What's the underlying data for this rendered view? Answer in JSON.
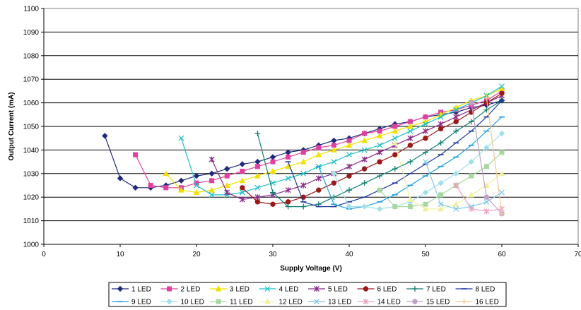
{
  "chart_data": {
    "type": "line",
    "title": "",
    "xlabel": "Supply Voltage (V)",
    "ylabel": "Output Current (mA)",
    "xlim": [
      0,
      70
    ],
    "ylim": [
      1000,
      1100
    ],
    "xticks": [
      0,
      10,
      20,
      30,
      40,
      50,
      60,
      70
    ],
    "yticks": [
      1000,
      1010,
      1020,
      1030,
      1040,
      1050,
      1060,
      1070,
      1080,
      1090,
      1100
    ],
    "grid": "horizontal",
    "legend_position": "bottom",
    "series": [
      {
        "name": "1 LED",
        "color": "#1f2a7a",
        "marker": "diamond",
        "x": [
          8,
          10,
          12,
          14,
          16,
          18,
          20,
          22,
          24,
          26,
          28,
          30,
          32,
          34,
          36,
          38,
          40,
          42,
          44,
          46,
          48,
          50,
          52,
          54,
          56,
          58,
          60
        ],
        "y": [
          1046,
          1028,
          1024,
          1024,
          1025,
          1027,
          1029,
          1030,
          1032,
          1034,
          1035,
          1037,
          1039,
          1040,
          1042,
          1044,
          1045,
          1047,
          1049,
          1051,
          1052,
          1054,
          1055,
          1056,
          1058,
          1059,
          1061
        ]
      },
      {
        "name": "2 LED",
        "color": "#e040a0",
        "marker": "square",
        "x": [
          12,
          14,
          16,
          18,
          20,
          22,
          24,
          26,
          28,
          30,
          32,
          34,
          36,
          38,
          40,
          42,
          44,
          46,
          48,
          50,
          52,
          54,
          56,
          58,
          60
        ],
        "y": [
          1038,
          1025,
          1024,
          1024,
          1026,
          1027,
          1029,
          1031,
          1033,
          1035,
          1037,
          1039,
          1041,
          1042,
          1044,
          1047,
          1048,
          1050,
          1052,
          1054,
          1056,
          1057,
          1059,
          1061,
          1065
        ]
      },
      {
        "name": "3 LED",
        "color": "#f0e000",
        "marker": "triangle",
        "x": [
          16,
          18,
          20,
          22,
          24,
          26,
          28,
          30,
          32,
          34,
          36,
          38,
          40,
          42,
          44,
          46,
          48,
          50,
          52,
          54,
          56,
          58,
          60
        ],
        "y": [
          1030,
          1023,
          1022,
          1023,
          1025,
          1027,
          1029,
          1031,
          1033,
          1035,
          1038,
          1040,
          1042,
          1044,
          1046,
          1048,
          1050,
          1052,
          1055,
          1058,
          1061,
          1063,
          1066
        ]
      },
      {
        "name": "4 LED",
        "color": "#20c0c8",
        "marker": "x",
        "x": [
          18,
          20,
          22,
          24,
          26,
          28,
          30,
          32,
          34,
          36,
          38,
          40,
          42,
          44,
          46,
          48,
          50,
          52,
          54,
          56,
          58,
          60
        ],
        "y": [
          1045,
          1025,
          1021,
          1021,
          1022,
          1024,
          1026,
          1028,
          1030,
          1033,
          1035,
          1038,
          1040,
          1042,
          1045,
          1048,
          1051,
          1054,
          1057,
          1060,
          1063,
          1067
        ]
      },
      {
        "name": "5 LED",
        "color": "#8a2a8a",
        "marker": "star",
        "x": [
          22,
          24,
          26,
          28,
          30,
          32,
          34,
          36,
          38,
          40,
          42,
          44,
          46,
          48,
          50,
          52,
          54,
          56,
          58,
          60
        ],
        "y": [
          1036,
          1022,
          1019,
          1020,
          1021,
          1023,
          1025,
          1028,
          1030,
          1033,
          1036,
          1039,
          1042,
          1045,
          1048,
          1051,
          1054,
          1057,
          1060,
          1063
        ]
      },
      {
        "name": "6 LED",
        "color": "#9a1a1a",
        "marker": "circle",
        "x": [
          26,
          28,
          30,
          32,
          34,
          36,
          38,
          40,
          42,
          44,
          46,
          48,
          50,
          52,
          54,
          56,
          58,
          60
        ],
        "y": [
          1024,
          1018,
          1017,
          1018,
          1020,
          1023,
          1026,
          1029,
          1032,
          1035,
          1038,
          1042,
          1045,
          1049,
          1052,
          1056,
          1060,
          1064
        ]
      },
      {
        "name": "7 LED",
        "color": "#108070",
        "marker": "plus",
        "x": [
          28,
          30,
          32,
          34,
          36,
          38,
          40,
          42,
          44,
          46,
          48,
          50,
          52,
          54,
          56,
          58,
          60
        ],
        "y": [
          1047,
          1022,
          1016,
          1016,
          1017,
          1020,
          1023,
          1026,
          1029,
          1032,
          1035,
          1039,
          1043,
          1048,
          1052,
          1057,
          1061
        ]
      },
      {
        "name": "8 LED",
        "color": "#1f3aa0",
        "marker": "dash",
        "x": [
          32,
          34,
          36,
          38,
          40,
          42,
          44,
          46,
          48,
          50,
          52,
          54,
          56,
          58,
          60
        ],
        "y": [
          1035,
          1018,
          1016,
          1016,
          1018,
          1020,
          1023,
          1026,
          1030,
          1034,
          1038,
          1043,
          1048,
          1054,
          1061
        ]
      },
      {
        "name": "9 LED",
        "color": "#20a0e0",
        "marker": "dash",
        "x": [
          36,
          38,
          40,
          42,
          44,
          46,
          48,
          50,
          52,
          54,
          56,
          58,
          60
        ],
        "y": [
          1033,
          1017,
          1015,
          1016,
          1018,
          1021,
          1025,
          1029,
          1033,
          1037,
          1042,
          1048,
          1054
        ]
      },
      {
        "name": "10 LED",
        "color": "#a0e0e8",
        "marker": "diamond",
        "x": [
          38,
          40,
          42,
          44,
          46,
          48,
          50,
          52,
          54,
          56,
          58,
          60
        ],
        "y": [
          1030,
          1016,
          1016,
          1015,
          1016,
          1018,
          1022,
          1026,
          1030,
          1035,
          1041,
          1047
        ]
      },
      {
        "name": "11 LED",
        "color": "#a8d8a0",
        "marker": "square",
        "x": [
          44,
          46,
          48,
          50,
          52,
          54,
          56,
          58,
          60
        ],
        "y": [
          1023,
          1016,
          1016,
          1017,
          1021,
          1025,
          1029,
          1033,
          1039
        ]
      },
      {
        "name": "12 LED",
        "color": "#f0f0a0",
        "marker": "triangle",
        "x": [
          46,
          48,
          50,
          52,
          54,
          56,
          58,
          60
        ],
        "y": [
          1043,
          1019,
          1015,
          1015,
          1017,
          1021,
          1025,
          1030
        ]
      },
      {
        "name": "13 LED",
        "color": "#80c8e8",
        "marker": "x",
        "x": [
          50,
          52,
          54,
          56,
          58,
          60
        ],
        "y": [
          1035,
          1017,
          1015,
          1016,
          1018,
          1022
        ]
      },
      {
        "name": "14 LED",
        "color": "#f0a0c0",
        "marker": "star",
        "x": [
          54,
          56,
          58,
          60
        ],
        "y": [
          1025,
          1015,
          1014,
          1015
        ]
      },
      {
        "name": "15 LED",
        "color": "#c0a0c8",
        "marker": "circle",
        "x": [
          56,
          58,
          60
        ],
        "y": [
          1060,
          1020,
          1013
        ]
      },
      {
        "name": "16 LED",
        "color": "#f0c890",
        "marker": "plus",
        "x": [
          58,
          60
        ],
        "y": [
          1062,
          1013
        ]
      }
    ]
  }
}
